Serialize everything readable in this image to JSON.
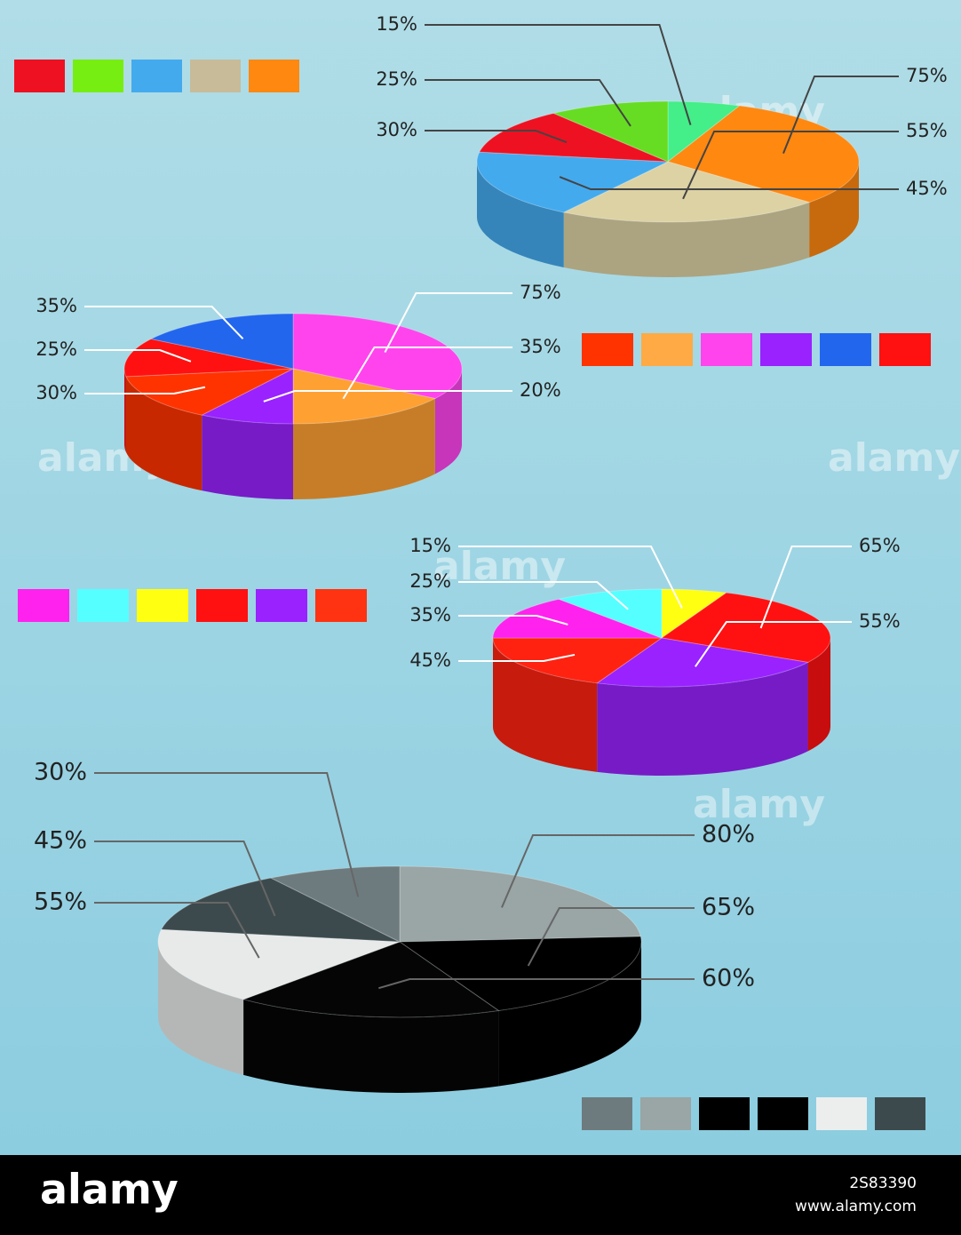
{
  "chart_data": [
    {
      "type": "pie",
      "values": [
        15,
        75,
        55,
        45,
        30,
        25
      ],
      "value_labels": [
        "15%",
        "75%",
        "55%",
        "45%",
        "30%",
        "25%"
      ],
      "colors": [
        "#44ee88",
        "#ff8811",
        "#ddd2a4",
        "#44aaee",
        "#ee1122",
        "#66dd22"
      ],
      "legend_colors": [
        "#ee1122",
        "#77ee11",
        "#44aaee",
        "#c8bb99",
        "#ff8811"
      ]
    },
    {
      "type": "pie",
      "values": [
        75,
        35,
        20,
        30,
        25,
        35
      ],
      "value_labels": [
        "75%",
        "35%",
        "20%",
        "30%",
        "25%",
        "35%"
      ],
      "colors": [
        "#ff44ee",
        "#ffa033",
        "#9922ff",
        "#ff3300",
        "#ff1111",
        "#2266ee"
      ],
      "legend_colors": [
        "#ff3300",
        "#ffaa44",
        "#ff44ee",
        "#9922ff",
        "#2266ee",
        "#ff1111"
      ]
    },
    {
      "type": "pie",
      "values": [
        15,
        65,
        55,
        45,
        35,
        25
      ],
      "value_labels": [
        "15%",
        "65%",
        "55%",
        "45%",
        "35%",
        "25%"
      ],
      "colors": [
        "#ffff11",
        "#ff1111",
        "#9922ff",
        "#ff2211",
        "#ff22ee",
        "#55ffff"
      ],
      "legend_colors": [
        "#ff22ee",
        "#55ffff",
        "#ffff11",
        "#ff1111",
        "#9922ff",
        "#ff3311"
      ]
    },
    {
      "type": "pie",
      "values": [
        80,
        65,
        60,
        55,
        45,
        30
      ],
      "value_labels": [
        "80%",
        "65%",
        "60%",
        "55%",
        "45%",
        "30%"
      ],
      "colors": [
        "#9aa5a5",
        "#000000",
        "#050505",
        "#e8eaea",
        "#3d4a4d",
        "#6e7b7e"
      ],
      "legend_colors": [
        "#6e7b7e",
        "#9aa5a5",
        "#000000",
        "#000000",
        "#eceeee",
        "#3d4a4d"
      ]
    }
  ],
  "watermark": "alamy",
  "footer": {
    "brand": "alamy",
    "image_id": "2S83390",
    "url": "www.alamy.com"
  }
}
